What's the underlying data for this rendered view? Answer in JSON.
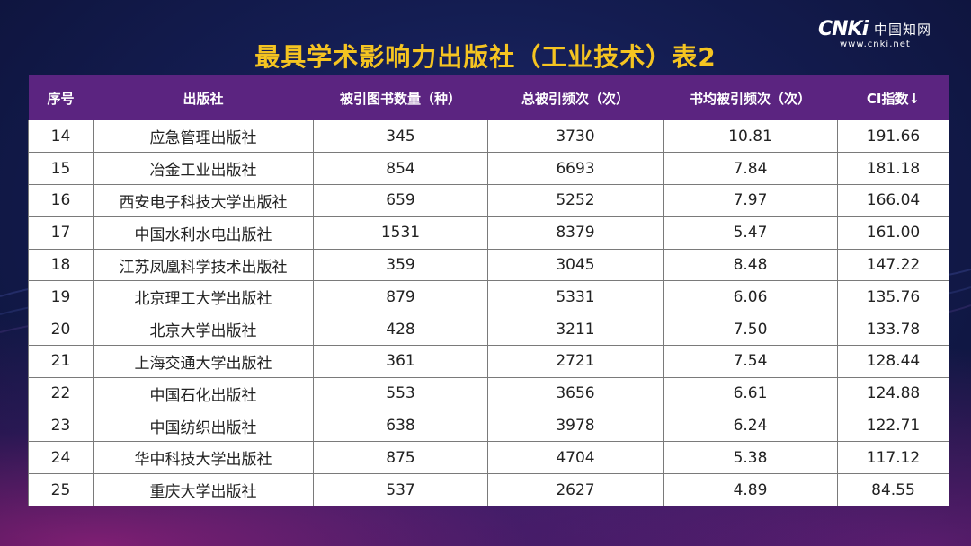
{
  "logo": {
    "mark": "CNKi",
    "cn": "中国知网",
    "url": "www.cnki.net"
  },
  "title": "最具学术影响力出版社（工业技术）表2",
  "table": {
    "headers": [
      "序号",
      "出版社",
      "被引图书数量（种）",
      "总被引频次（次）",
      "书均被引频次（次）",
      "CI指数↓"
    ],
    "rows": [
      [
        "14",
        "应急管理出版社",
        "345",
        "3730",
        "10.81",
        "191.66"
      ],
      [
        "15",
        "冶金工业出版社",
        "854",
        "6693",
        "7.84",
        "181.18"
      ],
      [
        "16",
        "西安电子科技大学出版社",
        "659",
        "5252",
        "7.97",
        "166.04"
      ],
      [
        "17",
        "中国水利水电出版社",
        "1531",
        "8379",
        "5.47",
        "161.00"
      ],
      [
        "18",
        "江苏凤凰科学技术出版社",
        "359",
        "3045",
        "8.48",
        "147.22"
      ],
      [
        "19",
        "北京理工大学出版社",
        "879",
        "5331",
        "6.06",
        "135.76"
      ],
      [
        "20",
        "北京大学出版社",
        "428",
        "3211",
        "7.50",
        "133.78"
      ],
      [
        "21",
        "上海交通大学出版社",
        "361",
        "2721",
        "7.54",
        "128.44"
      ],
      [
        "22",
        "中国石化出版社",
        "553",
        "3656",
        "6.61",
        "124.88"
      ],
      [
        "23",
        "中国纺织出版社",
        "638",
        "3978",
        "6.24",
        "122.71"
      ],
      [
        "24",
        "华中科技大学出版社",
        "875",
        "4704",
        "5.38",
        "117.12"
      ],
      [
        "25",
        "重庆大学出版社",
        "537",
        "2627",
        "4.89",
        "84.55"
      ]
    ]
  }
}
